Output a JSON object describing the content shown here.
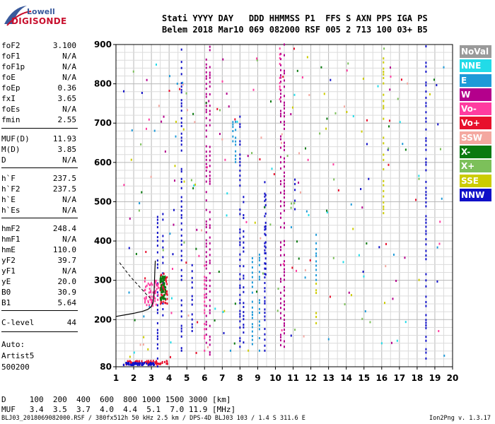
{
  "logo": {
    "top": "Lowell",
    "bottom": "DIGISONDE"
  },
  "header": {
    "line1": "Stati YYYY DAY   DDD HHMMSS P1  FFS S AXN PPS IGA PS",
    "line2": "Belem 2018 Mar10 069 082000 RSF 005 2 713 100 03+ B5"
  },
  "params": [
    {
      "label": "foF2",
      "value": "3.100"
    },
    {
      "label": "foF1",
      "value": "N/A"
    },
    {
      "label": "foF1p",
      "value": "N/A"
    },
    {
      "label": "foE",
      "value": "N/A"
    },
    {
      "label": "foEp",
      "value": "0.36"
    },
    {
      "label": "fxI",
      "value": "3.65"
    },
    {
      "label": "foEs",
      "value": "N/A"
    },
    {
      "label": "fmin",
      "value": "2.55"
    },
    {
      "label": "MUF(D)",
      "value": "11.93"
    },
    {
      "label": "M(D)",
      "value": "3.85"
    },
    {
      "label": "D",
      "value": "N/A"
    },
    {
      "label": "h`F",
      "value": "237.5"
    },
    {
      "label": "h`F2",
      "value": "237.5"
    },
    {
      "label": "h`E",
      "value": "N/A"
    },
    {
      "label": "h`Es",
      "value": "N/A"
    },
    {
      "label": "hmF2",
      "value": "248.4"
    },
    {
      "label": "hmF1",
      "value": "N/A"
    },
    {
      "label": "hmE",
      "value": "110.0"
    },
    {
      "label": "yF2",
      "value": "39.7"
    },
    {
      "label": "yF1",
      "value": "N/A"
    },
    {
      "label": "yE",
      "value": "20.0"
    },
    {
      "label": "B0",
      "value": "30.9"
    },
    {
      "label": "B1",
      "value": "5.64"
    },
    {
      "label": "C-level",
      "value": "44"
    }
  ],
  "auto": {
    "line1": "Auto:",
    "line2": "Artist5",
    "line3": "500200"
  },
  "legend": [
    {
      "label": "NoVal",
      "color": "#9a9a9a"
    },
    {
      "label": "NNE",
      "color": "#22dbe8"
    },
    {
      "label": "E",
      "color": "#1e9ad8"
    },
    {
      "label": "W",
      "color": "#b4008c"
    },
    {
      "label": "Vo-",
      "color": "#ff3ca0"
    },
    {
      "label": "Vo+",
      "color": "#e8102c"
    },
    {
      "label": "SSW",
      "color": "#f4a8a0"
    },
    {
      "label": "X-",
      "color": "#0a7a10"
    },
    {
      "label": "X+",
      "color": "#7cc05a"
    },
    {
      "label": "SSE",
      "color": "#cccc00"
    },
    {
      "label": "NNW",
      "color": "#1010c8"
    }
  ],
  "dmuf": {
    "d_line": "D     100  200  400  600  800 1000 1500 3000 [km]",
    "muf_line": "MUF   3.4  3.5  3.7  4.0  4.4  5.1  7.0 11.9 [MHz]"
  },
  "footer": {
    "left": "BLJ03_2018069082000.RSF / 380fx512h 50 kHz 2.5 km / DPS-4D BLJ03 103 / 1.4 S 311.6 E",
    "right": "Ion2Png v. 1.3.17"
  },
  "chart_data": {
    "type": "scatter",
    "title": "",
    "xlabel": "",
    "ylabel": "",
    "xlim": [
      1,
      20
    ],
    "ylim": [
      80,
      900
    ],
    "x_ticks": [
      1,
      2,
      3,
      4,
      5,
      6,
      7,
      8,
      9,
      10,
      11,
      12,
      13,
      14,
      15,
      16,
      17,
      18,
      19,
      20
    ],
    "y_ticks": [
      80,
      200,
      300,
      400,
      500,
      600,
      700,
      800,
      900
    ],
    "grid": true,
    "trace_curve": [
      [
        1.0,
        208
      ],
      [
        1.5,
        212
      ],
      [
        2.0,
        216
      ],
      [
        2.5,
        221
      ],
      [
        2.8,
        226
      ],
      [
        3.0,
        233
      ],
      [
        3.1,
        245
      ],
      [
        3.15,
        270
      ],
      [
        3.2,
        330
      ],
      [
        3.22,
        350
      ]
    ],
    "trace_dashed": [
      [
        1.2,
        345
      ],
      [
        1.8,
        310
      ],
      [
        2.3,
        285
      ],
      [
        2.7,
        265
      ],
      [
        3.0,
        252
      ]
    ],
    "series": [
      {
        "color": "#1010c8",
        "segments": [
          [
            3.35,
            80,
            470
          ],
          [
            3.65,
            210,
            470
          ],
          [
            4.7,
            120,
            900
          ],
          [
            5.3,
            170,
            340
          ],
          [
            8.0,
            130,
            720
          ],
          [
            8.2,
            130,
            520
          ],
          [
            9.4,
            120,
            560
          ],
          [
            9.45,
            300,
            520
          ],
          [
            11.1,
            480,
            560
          ],
          [
            18.5,
            100,
            900
          ]
        ]
      },
      {
        "color": "#b4008c",
        "segments": [
          [
            6.3,
            110,
            900
          ],
          [
            6.1,
            140,
            870
          ],
          [
            10.3,
            120,
            900
          ],
          [
            10.5,
            130,
            900
          ]
        ]
      },
      {
        "color": "#1e9ad8",
        "segments": [
          [
            7.6,
            640,
            720
          ],
          [
            7.75,
            600,
            710
          ],
          [
            8.7,
            130,
            360
          ],
          [
            9.1,
            120,
            370
          ],
          [
            12.3,
            300,
            420
          ]
        ]
      },
      {
        "color": "#cccc00",
        "segments": [
          [
            16.1,
            470,
            870
          ],
          [
            12.3,
            190,
            300
          ]
        ]
      },
      {
        "color": "#ff3ca0",
        "segments": [
          [
            10.25,
            760,
            900
          ],
          [
            6.0,
            120,
            350
          ]
        ]
      }
    ],
    "clusters": [
      {
        "color": "#e8102c",
        "x": [
          3.5,
          3.9
        ],
        "y": [
          240,
          320
        ]
      },
      {
        "color": "#ff3ca0",
        "x": [
          2.6,
          3.4
        ],
        "y": [
          235,
          300
        ]
      },
      {
        "color": "#0a7a10",
        "x": [
          3.5,
          3.8
        ],
        "y": [
          250,
          310
        ]
      },
      {
        "color": "#e8102c",
        "x": [
          1.5,
          4.0
        ],
        "y": [
          85,
          95
        ]
      },
      {
        "color": "#1010c8",
        "x": [
          1.4,
          3.2
        ],
        "y": [
          84,
          90
        ]
      }
    ],
    "scattered_points": 240
  }
}
